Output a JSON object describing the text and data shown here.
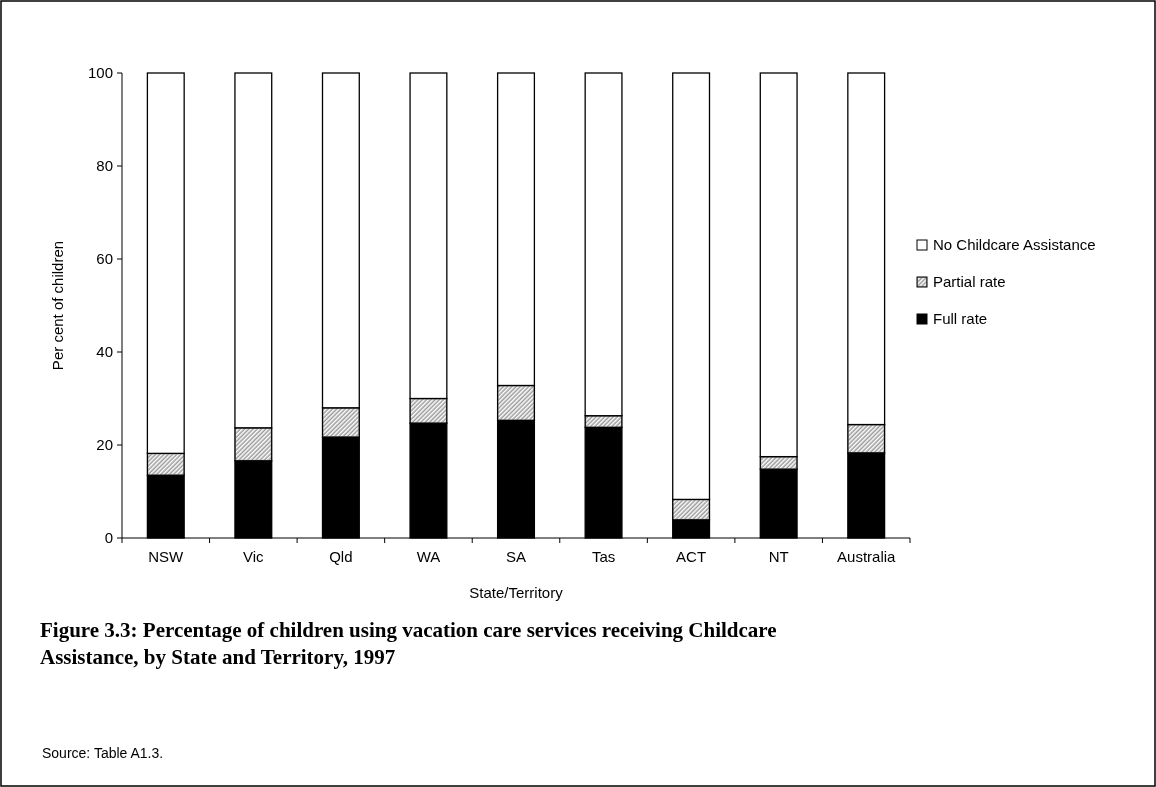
{
  "chart_data": {
    "type": "bar",
    "stacked": true,
    "title": "Figure 3.3: Percentage of children using vacation care services receiving Childcare Assistance, by State and Territory, 1997",
    "xlabel": "State/Territory",
    "ylabel": "Per cent of children",
    "categories": [
      "NSW",
      "Vic",
      "Qld",
      "WA",
      "SA",
      "Tas",
      "ACT",
      "NT",
      "Australia"
    ],
    "series": [
      {
        "name": "Full rate",
        "color": "#000000",
        "values": [
          13.5,
          16.6,
          21.7,
          24.7,
          25.3,
          23.8,
          3.9,
          14.8,
          18.3
        ]
      },
      {
        "name": "Partial rate",
        "color": "#9a9a9a",
        "values": [
          4.7,
          7.1,
          6.3,
          5.3,
          7.5,
          2.5,
          4.4,
          2.7,
          6.1
        ]
      },
      {
        "name": "No Childcare Assistance",
        "color": "#ffffff",
        "values": [
          81.8,
          76.3,
          72.0,
          70.0,
          67.2,
          73.7,
          91.7,
          82.5,
          75.6
        ]
      }
    ],
    "ylim": [
      0,
      100
    ],
    "yticks": [
      0,
      20,
      40,
      60,
      80,
      100
    ],
    "grid": false,
    "legend": "right",
    "annotations": [
      "Source: Table A1.3."
    ]
  }
}
